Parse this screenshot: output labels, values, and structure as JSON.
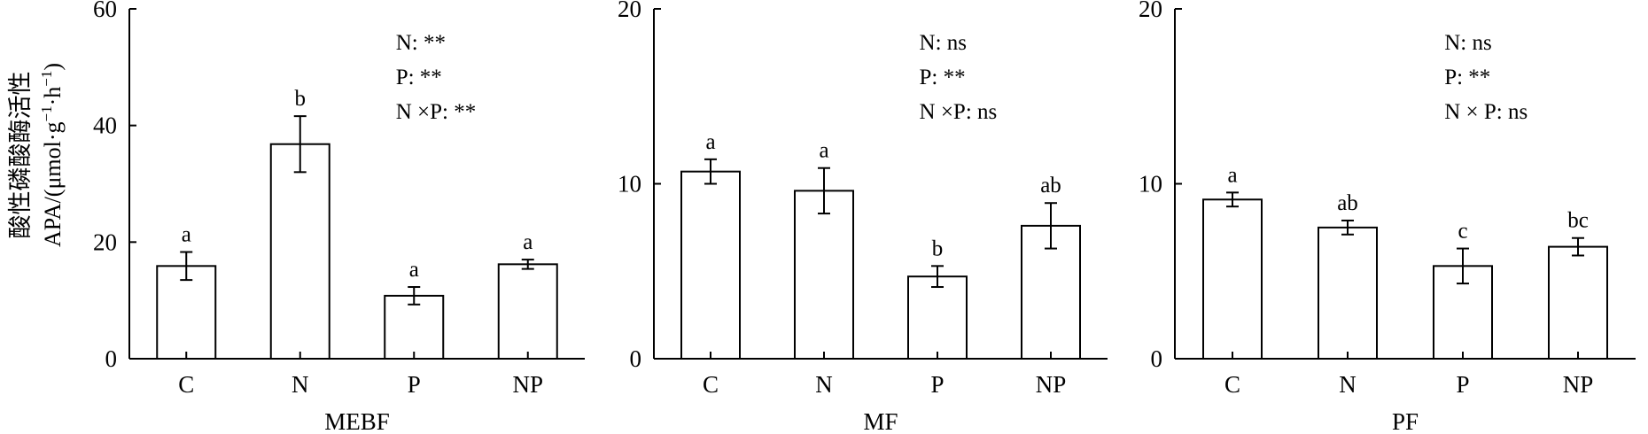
{
  "y_title_line1": "酸性磷酸酶活性",
  "y_title_line2_main": "APA/(μmol·g",
  "y_title_sup1": "−1",
  "y_title_mid": "·h",
  "y_title_sup2": "−1",
  "y_title_close": ")",
  "chart_data": [
    {
      "type": "bar",
      "xlabel": "MEBF",
      "ylabel": "酸性磷酸酶活性 APA/(μmol·g−1·h−1)",
      "categories": [
        "C",
        "N",
        "P",
        "NP"
      ],
      "values": [
        15.9,
        36.8,
        10.8,
        16.2
      ],
      "errors": [
        2.4,
        4.8,
        1.5,
        0.8
      ],
      "significance": [
        "a",
        "b",
        "a",
        "a"
      ],
      "ylim": [
        0,
        60
      ],
      "yticks": [
        0,
        20,
        40,
        60
      ],
      "stats": [
        "N: **",
        "P: **",
        "N ×P: **"
      ]
    },
    {
      "type": "bar",
      "xlabel": "MF",
      "ylabel": "",
      "categories": [
        "C",
        "N",
        "P",
        "NP"
      ],
      "values": [
        10.7,
        9.6,
        4.7,
        7.6
      ],
      "errors": [
        0.7,
        1.3,
        0.6,
        1.3
      ],
      "significance": [
        "a",
        "a",
        "b",
        "ab"
      ],
      "ylim": [
        0,
        20
      ],
      "yticks": [
        0,
        10,
        20
      ],
      "stats": [
        "N: ns",
        "P: **",
        "N ×P: ns"
      ]
    },
    {
      "type": "bar",
      "xlabel": "PF",
      "ylabel": "",
      "categories": [
        "C",
        "N",
        "P",
        "NP"
      ],
      "values": [
        9.1,
        7.5,
        5.3,
        6.4
      ],
      "errors": [
        0.4,
        0.4,
        1.0,
        0.5
      ],
      "significance": [
        "a",
        "ab",
        "c",
        "bc"
      ],
      "ylim": [
        0,
        20
      ],
      "yticks": [
        0,
        10,
        20
      ],
      "stats": [
        "N: ns",
        "P: **",
        "N × P: ns"
      ]
    }
  ]
}
